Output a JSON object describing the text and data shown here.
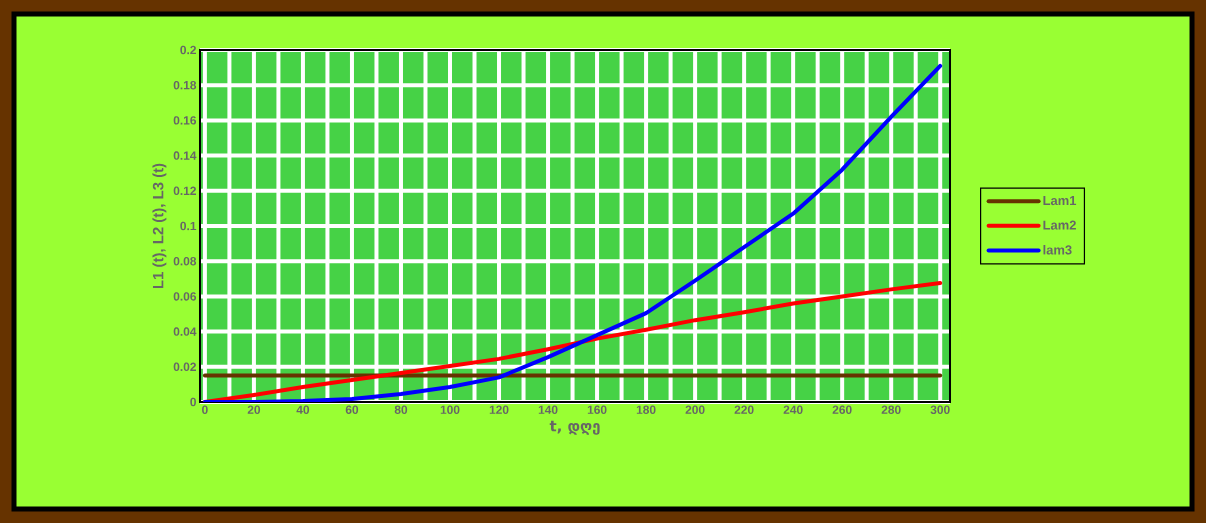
{
  "chart_data": {
    "type": "line",
    "xlabel": "t, დღე",
    "ylabel": "L1 (t), L2 (t), L3 (t)",
    "x": [
      0,
      20,
      40,
      60,
      80,
      100,
      120,
      140,
      160,
      180,
      200,
      220,
      240,
      260,
      280,
      300
    ],
    "series": [
      {
        "name": "Lam1",
        "color": "#663300",
        "values": [
          0.015,
          0.015,
          0.015,
          0.015,
          0.015,
          0.015,
          0.015,
          0.015,
          0.015,
          0.015,
          0.015,
          0.015,
          0.015,
          0.015,
          0.015,
          0.015
        ]
      },
      {
        "name": "Lam2",
        "color": "#ff0000",
        "values": [
          0,
          0.004,
          0.0085,
          0.0125,
          0.0165,
          0.0205,
          0.0245,
          0.03,
          0.036,
          0.041,
          0.0465,
          0.051,
          0.056,
          0.06,
          0.064,
          0.0676
        ]
      },
      {
        "name": "lam3",
        "color": "#0000ff",
        "values": [
          0,
          0,
          0.0005,
          0.0017,
          0.0045,
          0.0085,
          0.014,
          0.0255,
          0.038,
          0.0505,
          0.069,
          0.088,
          0.107,
          0.132,
          0.162,
          0.191
        ]
      }
    ],
    "xlim": [
      -2,
      304
    ],
    "ylim": [
      0,
      0.2
    ],
    "xticks": [
      0,
      20,
      40,
      60,
      80,
      100,
      120,
      140,
      160,
      180,
      200,
      220,
      240,
      260,
      280,
      300
    ],
    "yticks": [
      0,
      0.02,
      0.04,
      0.06,
      0.08,
      0.1,
      0.12,
      0.14,
      0.16,
      0.18,
      0.2
    ],
    "grid": true,
    "legend": "right",
    "marker": "none",
    "line_style": "solid"
  }
}
